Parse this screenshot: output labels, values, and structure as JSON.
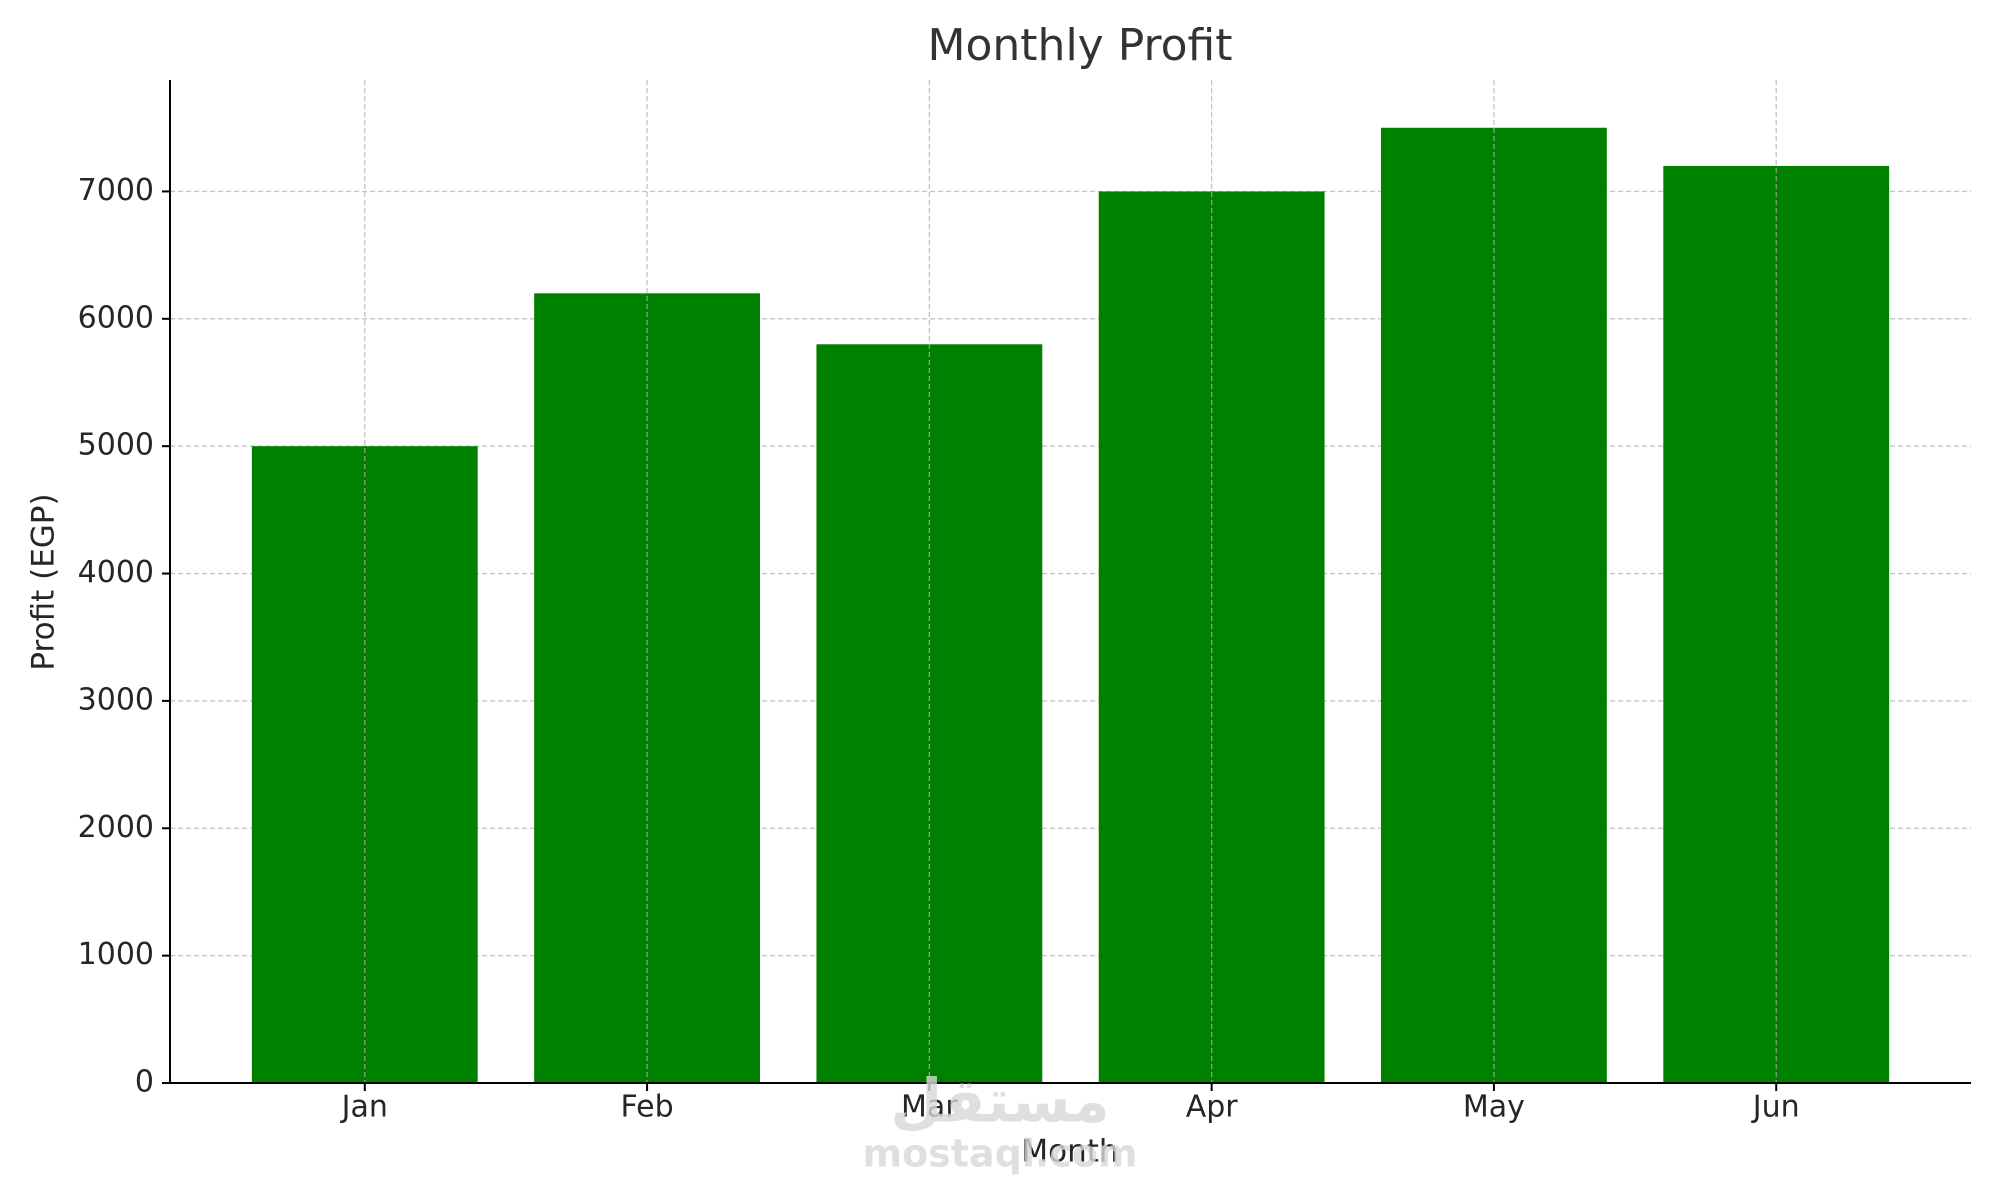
{
  "chart_data": {
    "type": "bar",
    "title": "Monthly Profit",
    "x_label": "Month",
    "y_label": "Profit (EGP)",
    "categories": [
      "Jan",
      "Feb",
      "Mar",
      "Apr",
      "May",
      "Jun"
    ],
    "values": [
      5000,
      6200,
      5800,
      7000,
      7500,
      7200
    ],
    "color": "#008000",
    "ylim": [
      0,
      7875
    ],
    "yticks": [
      0,
      1000,
      2000,
      3000,
      4000,
      5000,
      6000,
      7000
    ],
    "grid": true
  },
  "watermark": {
    "arabic": "مستقل",
    "latin": "mostaql.com"
  }
}
